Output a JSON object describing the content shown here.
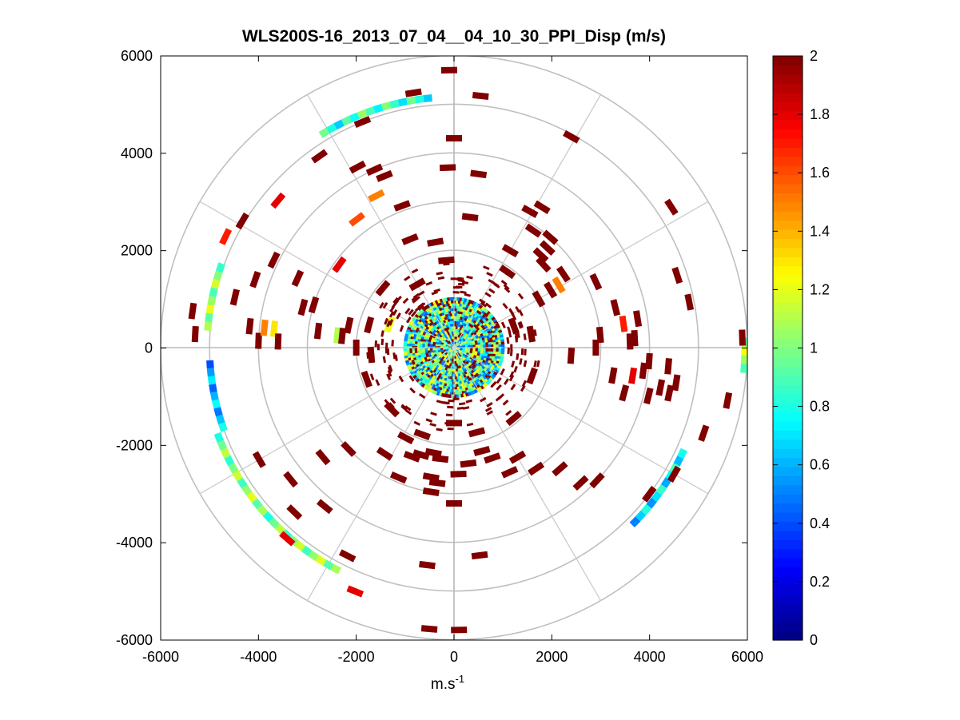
{
  "chart_data": {
    "type": "heatmap",
    "subtype": "polar-ppi",
    "title": "WLS200S-16_2013_07_04__04_10_30_PPI_Disp (m/s)",
    "xlabel": "m.s",
    "xlabel_superscript": "-1",
    "ylabel": "",
    "xlim": [
      -6000,
      6000
    ],
    "ylim": [
      -6000,
      6000
    ],
    "x_ticks": [
      -6000,
      -4000,
      -2000,
      0,
      2000,
      4000,
      6000
    ],
    "x_tick_labels": [
      "-6000",
      "-4000",
      "-2000",
      "0",
      "2000",
      "4000",
      "6000"
    ],
    "y_ticks": [
      6000,
      4000,
      2000,
      0,
      -2000,
      -4000,
      -6000
    ],
    "y_tick_labels": [
      "6000",
      "4000",
      "2000",
      "0",
      "-2000",
      "-4000",
      "-6000"
    ],
    "polar_rings": [
      1000,
      2000,
      3000,
      4000,
      5000,
      6000
    ],
    "polar_spokes_deg": [
      0,
      30,
      60,
      90,
      120,
      150,
      180,
      210,
      240,
      270,
      300,
      330
    ],
    "grid": true,
    "colorbar": {
      "min": 0,
      "max": 2,
      "ticks": [
        0,
        0.2,
        0.4,
        0.6,
        0.8,
        1,
        1.2,
        1.4,
        1.6,
        1.8,
        2
      ],
      "tick_labels": [
        "0",
        "0.2",
        "0.4",
        "0.6",
        "0.8",
        "1",
        "1.2",
        "1.4",
        "1.6",
        "1.8",
        "2"
      ],
      "colormap": "jet"
    },
    "outer_arcs": [
      {
        "r": 5150,
        "from_deg": 95,
        "to_deg": 122,
        "value": 0.85
      },
      {
        "r": 5050,
        "from_deg": 160,
        "to_deg": 176,
        "value": 1.05
      },
      {
        "r": 5000,
        "from_deg": 183,
        "to_deg": 200,
        "value": 0.6
      },
      {
        "r": 5150,
        "from_deg": 200,
        "to_deg": 243,
        "value": 1.0
      },
      {
        "r": 5150,
        "from_deg": 315,
        "to_deg": 336,
        "value": 0.7
      },
      {
        "r": 5950,
        "from_deg": 355,
        "to_deg": 362,
        "value": 1.1
      }
    ],
    "central_region": {
      "r_max": 1000,
      "value_mix": [
        0.5,
        0.8,
        1.0,
        1.2,
        2.0
      ]
    },
    "cells": [
      {
        "r": 5700,
        "theta": 91,
        "v": 2
      },
      {
        "r": 5300,
        "theta": 99,
        "v": 2
      },
      {
        "r": 5200,
        "theta": 84,
        "v": 2
      },
      {
        "r": 5000,
        "theta": 112,
        "v": 2
      },
      {
        "r": 4950,
        "theta": 61,
        "v": 2
      },
      {
        "r": 4800,
        "theta": 125,
        "v": 2
      },
      {
        "r": 4700,
        "theta": 140,
        "v": 1.8
      },
      {
        "r": 4300,
        "theta": 90,
        "v": 2
      },
      {
        "r": 4200,
        "theta": 118,
        "v": 2
      },
      {
        "r": 4000,
        "theta": 114,
        "v": 2
      },
      {
        "r": 3800,
        "theta": 112,
        "v": 2
      },
      {
        "r": 3700,
        "theta": 92,
        "v": 2
      },
      {
        "r": 3600,
        "theta": 82,
        "v": 2
      },
      {
        "r": 3500,
        "theta": 117,
        "v": 1.5
      },
      {
        "r": 3400,
        "theta": 58,
        "v": 2
      },
      {
        "r": 3300,
        "theta": 127,
        "v": 1.6
      },
      {
        "r": 3200,
        "theta": 61,
        "v": 2
      },
      {
        "r": 3100,
        "theta": 110,
        "v": 2
      },
      {
        "r": 3000,
        "theta": 49,
        "v": 2
      },
      {
        "r": 2900,
        "theta": 56,
        "v": 2
      },
      {
        "r": 2800,
        "theta": 47,
        "v": 2
      },
      {
        "r": 2700,
        "theta": 83,
        "v": 2
      },
      {
        "r": 2600,
        "theta": 47,
        "v": 2
      },
      {
        "r": 2500,
        "theta": 43,
        "v": 2
      },
      {
        "r": 2400,
        "theta": 112,
        "v": 2
      },
      {
        "r": 2300,
        "theta": 60,
        "v": 2
      },
      {
        "r": 2200,
        "theta": 100,
        "v": 2
      },
      {
        "r": 5400,
        "theta": 172,
        "v": 2
      },
      {
        "r": 5300,
        "theta": 177,
        "v": 2
      },
      {
        "r": 5050,
        "theta": 149,
        "v": 2
      },
      {
        "r": 5200,
        "theta": 154,
        "v": 1.7
      },
      {
        "r": 4600,
        "theta": 167,
        "v": 2
      },
      {
        "r": 4300,
        "theta": 161,
        "v": 2
      },
      {
        "r": 4200,
        "theta": 174,
        "v": 2
      },
      {
        "r": 4000,
        "theta": 178,
        "v": 2
      },
      {
        "r": 4100,
        "theta": 154,
        "v": 2
      },
      {
        "r": 3900,
        "theta": 174,
        "v": 1.5
      },
      {
        "r": 3700,
        "theta": 174,
        "v": 1.3
      },
      {
        "r": 3600,
        "theta": 178,
        "v": 2
      },
      {
        "r": 3500,
        "theta": 156,
        "v": 2
      },
      {
        "r": 3200,
        "theta": 165,
        "v": 2
      },
      {
        "r": 3000,
        "theta": 163,
        "v": 2
      },
      {
        "r": 2900,
        "theta": 144,
        "v": 1.8
      },
      {
        "r": 2800,
        "theta": 173,
        "v": 2
      },
      {
        "r": 2400,
        "theta": 174,
        "v": 1.1
      },
      {
        "r": 2200,
        "theta": 168,
        "v": 2
      },
      {
        "r": 2300,
        "theta": 174,
        "v": 2
      },
      {
        "r": 5900,
        "theta": 2,
        "v": 2
      },
      {
        "r": 5700,
        "theta": -11,
        "v": 2
      },
      {
        "r": 5400,
        "theta": -19,
        "v": 2
      },
      {
        "r": 5300,
        "theta": 33,
        "v": 2
      },
      {
        "r": 4900,
        "theta": 11,
        "v": 2
      },
      {
        "r": 4800,
        "theta": 18,
        "v": 2
      },
      {
        "r": 4600,
        "theta": -9,
        "v": 2
      },
      {
        "r": 4400,
        "theta": -5,
        "v": 2
      },
      {
        "r": 4300,
        "theta": -11,
        "v": 2
      },
      {
        "r": 4100,
        "theta": -14,
        "v": 2
      },
      {
        "r": 4000,
        "theta": -4,
        "v": 2
      },
      {
        "r": 3900,
        "theta": -7,
        "v": 2
      },
      {
        "r": 3800,
        "theta": 9,
        "v": 2
      },
      {
        "r": 3700,
        "theta": 3,
        "v": 2
      },
      {
        "r": 3600,
        "theta": -15,
        "v": 2
      },
      {
        "r": 3500,
        "theta": 8,
        "v": 1.7
      },
      {
        "r": 3400,
        "theta": 14,
        "v": 2
      },
      {
        "r": 3300,
        "theta": -10,
        "v": 2
      },
      {
        "r": 3200,
        "theta": 25,
        "v": 2
      },
      {
        "r": 3000,
        "theta": 5,
        "v": 2
      },
      {
        "r": 2900,
        "theta": 0,
        "v": 2
      },
      {
        "r": 2700,
        "theta": 34,
        "v": 2
      },
      {
        "r": 2500,
        "theta": 31,
        "v": 1.5
      },
      {
        "r": 2400,
        "theta": -4,
        "v": 2
      },
      {
        "r": 2300,
        "theta": 31,
        "v": 2
      },
      {
        "r": 3600,
        "theta": 2,
        "v": 2
      },
      {
        "r": 3700,
        "theta": -9,
        "v": 1.8
      },
      {
        "r": 4500,
        "theta": -12,
        "v": 2
      },
      {
        "r": 5200,
        "theta": -30,
        "v": 2
      },
      {
        "r": 5000,
        "theta": -37,
        "v": 2
      },
      {
        "r": 4000,
        "theta": -43,
        "v": 2
      },
      {
        "r": 3800,
        "theta": -47,
        "v": 2
      },
      {
        "r": 3300,
        "theta": -49,
        "v": 2
      },
      {
        "r": 3000,
        "theta": -56,
        "v": 2
      },
      {
        "r": 2800,
        "theta": -66,
        "v": 2
      },
      {
        "r": 2600,
        "theta": -60,
        "v": 2
      },
      {
        "r": 2400,
        "theta": -71,
        "v": 2
      },
      {
        "r": 2200,
        "theta": -75,
        "v": 2
      },
      {
        "r": 5800,
        "theta": -89,
        "v": 2
      },
      {
        "r": 5800,
        "theta": -95,
        "v": 2
      },
      {
        "r": 4500,
        "theta": -97,
        "v": 2
      },
      {
        "r": 4300,
        "theta": -83,
        "v": 2
      },
      {
        "r": 3200,
        "theta": -90,
        "v": 2
      },
      {
        "r": 3000,
        "theta": -99,
        "v": 2
      },
      {
        "r": 2800,
        "theta": -97,
        "v": 2
      },
      {
        "r": 2700,
        "theta": -100,
        "v": 2
      },
      {
        "r": 2600,
        "theta": -88,
        "v": 2
      },
      {
        "r": 2400,
        "theta": -83,
        "v": 2
      },
      {
        "r": 2300,
        "theta": -97,
        "v": 2
      },
      {
        "r": 2200,
        "theta": -101,
        "v": 2
      },
      {
        "r": 4600,
        "theta": -150,
        "v": 2
      },
      {
        "r": 4700,
        "theta": -134,
        "v": 2
      },
      {
        "r": 4300,
        "theta": -141,
        "v": 2
      },
      {
        "r": 4200,
        "theta": -129,
        "v": 2
      },
      {
        "r": 3500,
        "theta": -140,
        "v": 2
      },
      {
        "r": 3000,
        "theta": -136,
        "v": 2
      },
      {
        "r": 2900,
        "theta": -113,
        "v": 2
      },
      {
        "r": 2600,
        "theta": -123,
        "v": 2
      },
      {
        "r": 2400,
        "theta": -111,
        "v": 2
      },
      {
        "r": 2300,
        "theta": -107,
        "v": 2
      },
      {
        "r": 2100,
        "theta": -118,
        "v": 2
      },
      {
        "r": 5200,
        "theta": -131,
        "v": 1.8
      },
      {
        "r": 5400,
        "theta": -112,
        "v": 1.8
      },
      {
        "r": 4800,
        "theta": -117,
        "v": 2
      },
      {
        "r": 2000,
        "theta": 30,
        "v": 2
      },
      {
        "r": 1900,
        "theta": 55,
        "v": 2
      },
      {
        "r": 1800,
        "theta": 95,
        "v": 2
      },
      {
        "r": 1900,
        "theta": 140,
        "v": 2
      },
      {
        "r": 1800,
        "theta": 165,
        "v": 2
      },
      {
        "r": 1700,
        "theta": 185,
        "v": 2
      },
      {
        "r": 1900,
        "theta": 200,
        "v": 2
      },
      {
        "r": 1800,
        "theta": 225,
        "v": 2
      },
      {
        "r": 1900,
        "theta": 250,
        "v": 2
      },
      {
        "r": 1800,
        "theta": 285,
        "v": 2
      },
      {
        "r": 1900,
        "theta": 310,
        "v": 2
      },
      {
        "r": 1700,
        "theta": 340,
        "v": 2
      },
      {
        "r": 1600,
        "theta": 10,
        "v": 2
      },
      {
        "r": 1500,
        "theta": 120,
        "v": 2
      },
      {
        "r": 1550,
        "theta": 270,
        "v": 2
      },
      {
        "r": 1400,
        "theta": 160,
        "v": 1.2
      },
      {
        "r": 2000,
        "theta": 180,
        "v": 2
      },
      {
        "r": 1300,
        "theta": 20,
        "v": 2
      }
    ]
  }
}
